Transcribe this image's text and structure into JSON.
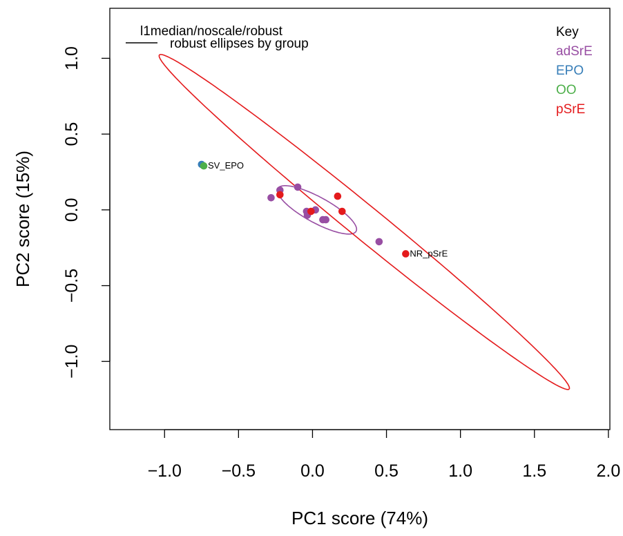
{
  "chart_data": {
    "type": "scatter",
    "xlabel": "PC1 score (74%)",
    "ylabel": "PC2 score (15%)",
    "xlim": [
      -1.37,
      2.01
    ],
    "ylim": [
      -1.45,
      1.33
    ],
    "x_ticks": [
      -1.0,
      -0.5,
      0.0,
      0.5,
      1.0,
      1.5,
      2.0
    ],
    "x_tick_labels": [
      "−1.0",
      "−0.5",
      "0.0",
      "0.5",
      "1.0",
      "1.5",
      "2.0"
    ],
    "y_ticks": [
      -1.0,
      -0.5,
      0.0,
      0.5,
      1.0
    ],
    "y_tick_labels": [
      "−1.0",
      "−0.5",
      "0.0",
      "0.5",
      "1.0"
    ],
    "grid": false,
    "annotations": {
      "method_line1": "l1median/noscale/robust",
      "method_line2": "robust ellipses by group"
    },
    "legend": {
      "position": "top-right",
      "title": "Key",
      "entries": [
        {
          "name": "adSrE",
          "color": "#984EA3"
        },
        {
          "name": "EPO",
          "color": "#377EB8"
        },
        {
          "name": "OO",
          "color": "#4DAF4A"
        },
        {
          "name": "pSrE",
          "color": "#E41A1C"
        }
      ]
    },
    "series": [
      {
        "name": "adSrE",
        "color": "#984EA3",
        "points": [
          {
            "x": -0.28,
            "y": 0.08
          },
          {
            "x": -0.22,
            "y": 0.13
          },
          {
            "x": -0.1,
            "y": 0.15
          },
          {
            "x": -0.04,
            "y": -0.01
          },
          {
            "x": -0.035,
            "y": -0.035
          },
          {
            "x": 0.02,
            "y": 0.0
          },
          {
            "x": 0.07,
            "y": -0.065
          },
          {
            "x": 0.09,
            "y": -0.065
          },
          {
            "x": 0.45,
            "y": -0.21
          }
        ]
      },
      {
        "name": "EPO",
        "color": "#377EB8",
        "points": [
          {
            "x": -0.75,
            "y": 0.3
          }
        ]
      },
      {
        "name": "OO",
        "color": "#4DAF4A",
        "points": [
          {
            "x": -0.735,
            "y": 0.29
          }
        ]
      },
      {
        "name": "pSrE",
        "color": "#E41A1C",
        "points": [
          {
            "x": -0.22,
            "y": 0.1
          },
          {
            "x": -0.01,
            "y": -0.01
          },
          {
            "x": 0.17,
            "y": 0.09
          },
          {
            "x": 0.2,
            "y": -0.01
          },
          {
            "x": 0.63,
            "y": -0.29
          }
        ]
      }
    ],
    "point_labels": [
      {
        "text": "SV_EPO",
        "x": -0.735,
        "y": 0.29
      },
      {
        "text": "NR_pSrE",
        "x": 0.63,
        "y": -0.29
      }
    ],
    "ellipses": [
      {
        "group": "adSrE",
        "color": "#984EA3",
        "center": [
          0.03,
          0.0
        ],
        "angle_deg": -28,
        "semi_axis_major": 0.3,
        "semi_axis_minor": 0.085
      },
      {
        "group": "pSrE",
        "color": "#E41A1C",
        "center": [
          0.35,
          -0.08
        ],
        "angle_deg": -38.5,
        "semi_axis_major": 1.77,
        "semi_axis_minor": 0.11
      }
    ]
  }
}
